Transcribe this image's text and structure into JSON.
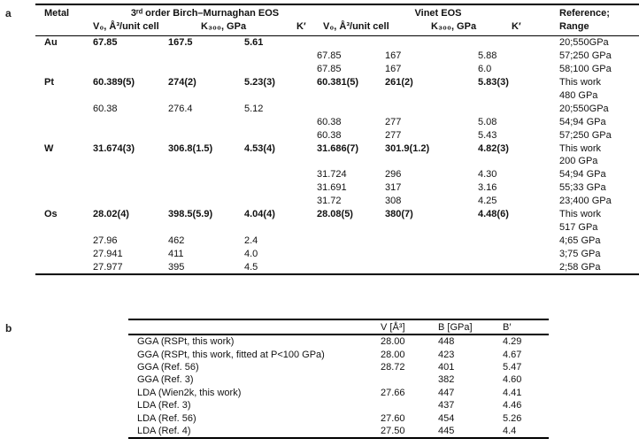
{
  "colors": {
    "background": "#ffffff",
    "text": "#121212",
    "rule": "#000000"
  },
  "panel_labels": {
    "a": "a",
    "b": "b"
  },
  "table_a": {
    "header": {
      "metal": "Metal",
      "bm_group": "3ʳᵈ order Birch–Murnaghan EOS",
      "vinet_group": "Vinet EOS",
      "reference": "Reference;",
      "sub": {
        "v0_bm": "V₀, Å³/unit cell",
        "k_bm": "K₃₀₀, GPa",
        "kp_bm": "K′",
        "v0_vi": "V₀, Å³/unit cell",
        "k_vi": "K₃₀₀, GPa",
        "kp_vi": "K′",
        "range": "Range"
      }
    },
    "rows": [
      {
        "metal": "Au",
        "bm_v0": "67.85",
        "bm_k": "167.5",
        "bm_kp": "5.61",
        "vi_v0": "",
        "vi_k": "",
        "vi_kp": "",
        "ref": "20;550GPa",
        "em": "b",
        "refem": ""
      },
      {
        "metal": "",
        "bm_v0": "",
        "bm_k": "",
        "bm_kp": "",
        "vi_v0": "67.85",
        "vi_k": "167",
        "vi_kp": "5.88",
        "ref": "57;250 GPa",
        "em": "",
        "refem": ""
      },
      {
        "metal": "",
        "bm_v0": "",
        "bm_k": "",
        "bm_kp": "",
        "vi_v0": "67.85",
        "vi_k": "167",
        "vi_kp": "6.0",
        "ref": "58;100 GPa",
        "em": "",
        "refem": ""
      },
      {
        "metal": "Pt",
        "bm_v0": "60.389(5)",
        "bm_k": "274(2)",
        "bm_kp": "5.23(3)",
        "vi_v0": "60.381(5)",
        "vi_k": "261(2)",
        "vi_kp": "5.83(3)",
        "ref": "This work",
        "em": "b",
        "refem": "b"
      },
      {
        "metal": "",
        "bm_v0": "",
        "bm_k": "",
        "bm_kp": "",
        "vi_v0": "",
        "vi_k": "",
        "vi_kp": "",
        "ref": "480 GPa",
        "em": "",
        "refem": ""
      },
      {
        "metal": "",
        "bm_v0": "60.38",
        "bm_k": "276.4",
        "bm_kp": "5.12",
        "vi_v0": "",
        "vi_k": "",
        "vi_kp": "",
        "ref": "20;550GPa",
        "em": "",
        "refem": ""
      },
      {
        "metal": "",
        "bm_v0": "",
        "bm_k": "",
        "bm_kp": "",
        "vi_v0": "60.38",
        "vi_k": "277",
        "vi_kp": "5.08",
        "ref": "54;94 GPa",
        "em": "",
        "refem": ""
      },
      {
        "metal": "",
        "bm_v0": "",
        "bm_k": "",
        "bm_kp": "",
        "vi_v0": "60.38",
        "vi_k": "277",
        "vi_kp": "5.43",
        "ref": "57;250 GPa",
        "em": "",
        "refem": ""
      },
      {
        "metal": "W",
        "bm_v0": "31.674(3)",
        "bm_k": "306.8(1.5)",
        "bm_kp": "4.53(4)",
        "vi_v0": "31.686(7)",
        "vi_k": "301.9(1.2)",
        "vi_kp": "4.82(3)",
        "ref": "This work",
        "em": "b",
        "refem": "b"
      },
      {
        "metal": "",
        "bm_v0": "",
        "bm_k": "",
        "bm_kp": "",
        "vi_v0": "",
        "vi_k": "",
        "vi_kp": "",
        "ref": "200 GPa",
        "em": "",
        "refem": ""
      },
      {
        "metal": "",
        "bm_v0": "",
        "bm_k": "",
        "bm_kp": "",
        "vi_v0": "31.724",
        "vi_k": "296",
        "vi_kp": "4.30",
        "ref": "54;94 GPa",
        "em": "",
        "refem": ""
      },
      {
        "metal": "",
        "bm_v0": "",
        "bm_k": "",
        "bm_kp": "",
        "vi_v0": "31.691",
        "vi_k": "317",
        "vi_kp": "3.16",
        "ref": "55;33 GPa",
        "em": "",
        "refem": ""
      },
      {
        "metal": "",
        "bm_v0": "",
        "bm_k": "",
        "bm_kp": "",
        "vi_v0": "31.72",
        "vi_k": "308",
        "vi_kp": "4.25",
        "ref": "23;400 GPa",
        "em": "",
        "refem": ""
      },
      {
        "metal": "Os",
        "bm_v0": "28.02(4)",
        "bm_k": "398.5(5.9)",
        "bm_kp": "4.04(4)",
        "vi_v0": "28.08(5)",
        "vi_k": "380(7)",
        "vi_kp": "4.48(6)",
        "ref": "This work",
        "em": "b",
        "refem": "b"
      },
      {
        "metal": "",
        "bm_v0": "",
        "bm_k": "",
        "bm_kp": "",
        "vi_v0": "",
        "vi_k": "",
        "vi_kp": "",
        "ref": "517 GPa",
        "em": "",
        "refem": ""
      },
      {
        "metal": "",
        "bm_v0": "27.96",
        "bm_k": "462",
        "bm_kp": "2.4",
        "vi_v0": "",
        "vi_k": "",
        "vi_kp": "",
        "ref": "4;65 GPa",
        "em": "",
        "refem": ""
      },
      {
        "metal": "",
        "bm_v0": "27.941",
        "bm_k": "411",
        "bm_kp": "4.0",
        "vi_v0": "",
        "vi_k": "",
        "vi_kp": "",
        "ref": "3;75 GPa",
        "em": "",
        "refem": ""
      },
      {
        "metal": "",
        "bm_v0": "27.977",
        "bm_k": "395",
        "bm_kp": "4.5",
        "vi_v0": "",
        "vi_k": "",
        "vi_kp": "",
        "ref": "2;58 GPa",
        "em": "",
        "refem": ""
      }
    ]
  },
  "table_b": {
    "header": {
      "label": "",
      "v": "V [Å³]",
      "b": "B [GPa]",
      "bp": "B′"
    },
    "rows": [
      {
        "label": "GGA (RSPt, this work)",
        "v": "28.00",
        "b": "448",
        "bp": "4.29"
      },
      {
        "label": "GGA (RSPt, this work, fitted at P<100 GPa)",
        "v": "28.00",
        "b": "423",
        "bp": "4.67"
      },
      {
        "label": "GGA (Ref. 56)",
        "v": "28.72",
        "b": "401",
        "bp": "5.47"
      },
      {
        "label": "GGA (Ref. 3)",
        "v": "",
        "b": "382",
        "bp": "4.60"
      },
      {
        "label": "LDA (Wien2k, this work)",
        "v": "27.66",
        "b": "447",
        "bp": "4.41"
      },
      {
        "label": "LDA (Ref. 3)",
        "v": "",
        "b": "437",
        "bp": "4.46"
      },
      {
        "label": "LDA (Ref. 56)",
        "v": "27.60",
        "b": "454",
        "bp": "5.26"
      },
      {
        "label": "LDA (Ref. 4)",
        "v": "27.50",
        "b": "445",
        "bp": "4.4"
      }
    ]
  }
}
